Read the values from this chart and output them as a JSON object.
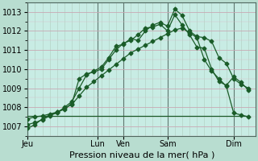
{
  "title": "Pression niveau de la mer( hPa )",
  "bg_color": "#b8ddd0",
  "plot_bg_color": "#c8ece4",
  "line_color": "#1a5c28",
  "ylim": [
    1006.5,
    1013.5
  ],
  "yticks": [
    1007,
    1008,
    1009,
    1010,
    1011,
    1012,
    1013
  ],
  "x_day_labels": [
    "Jeu",
    "Lun",
    "Ven",
    "Sam",
    "Dim"
  ],
  "x_day_positions": [
    0,
    9.5,
    13,
    19,
    28
  ],
  "xlim": [
    0,
    31
  ],
  "x_vlines": [
    0,
    9.5,
    13,
    19,
    28
  ],
  "minor_x_count": 30,
  "line1_x": [
    0,
    1,
    2,
    3,
    4,
    5,
    6,
    7,
    8,
    9,
    10,
    11,
    12,
    13,
    14,
    15,
    16,
    17,
    18,
    19,
    20,
    21,
    22,
    23,
    24,
    25,
    26,
    27,
    28,
    29,
    30
  ],
  "line1_y": [
    1006.9,
    1007.1,
    1007.4,
    1007.6,
    1007.7,
    1008.0,
    1008.3,
    1009.0,
    1009.7,
    1009.9,
    1010.1,
    1010.6,
    1011.2,
    1011.3,
    1011.6,
    1011.5,
    1012.0,
    1012.3,
    1012.45,
    1012.25,
    1013.15,
    1012.8,
    1012.0,
    1011.7,
    1011.65,
    1011.45,
    1010.6,
    1010.3,
    1009.5,
    1009.2,
    1009.0
  ],
  "line2_x": [
    0,
    1,
    2,
    3,
    4,
    5,
    6,
    7,
    8,
    9,
    10,
    11,
    12,
    13,
    14,
    15,
    16,
    17,
    18,
    19,
    20,
    21,
    22,
    23,
    24,
    25,
    26,
    27,
    28,
    29,
    30
  ],
  "line2_y": [
    1007.4,
    1007.5,
    1007.55,
    1007.65,
    1007.75,
    1007.9,
    1008.2,
    1009.5,
    1009.75,
    1009.85,
    1010.0,
    1010.5,
    1011.0,
    1011.35,
    1011.5,
    1011.8,
    1012.15,
    1012.2,
    1012.35,
    1012.0,
    1012.85,
    1012.3,
    1011.8,
    1011.15,
    1011.1,
    1010.0,
    1009.35,
    1009.15,
    1009.6,
    1009.3,
    1008.9
  ],
  "line3_x": [
    0,
    30
  ],
  "line3_y": [
    1007.55,
    1007.55
  ],
  "line4_x": [
    0,
    1,
    2,
    3,
    4,
    5,
    6,
    7,
    8,
    9,
    10,
    11,
    12,
    13,
    14,
    15,
    16,
    17,
    18,
    19,
    20,
    21,
    22,
    23,
    24,
    25,
    26,
    27,
    28,
    29,
    30
  ],
  "line4_y": [
    1007.1,
    1007.2,
    1007.35,
    1007.55,
    1007.75,
    1007.95,
    1008.15,
    1008.6,
    1009.05,
    1009.35,
    1009.65,
    1009.95,
    1010.25,
    1010.55,
    1010.85,
    1011.05,
    1011.25,
    1011.45,
    1011.65,
    1011.85,
    1012.05,
    1012.15,
    1011.9,
    1011.65,
    1010.5,
    1009.9,
    1009.5,
    1009.1,
    1007.7,
    1007.6,
    1007.5
  ],
  "xlabel_fontsize": 7,
  "ylabel_fontsize": 7,
  "title_fontsize": 8
}
